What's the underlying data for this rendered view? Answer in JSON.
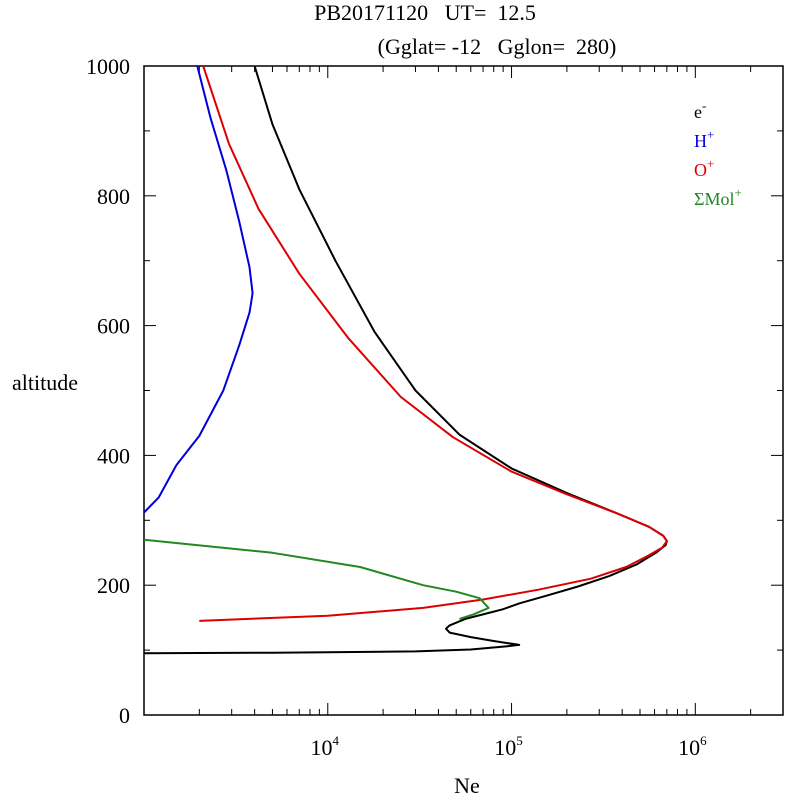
{
  "title_line1": "PB20171120   UT=  12.5",
  "title_line2": "(Gglat= -12   Gglon=  280)",
  "chart_data": {
    "type": "line",
    "title": "PB20171120   UT=  12.5   (Gglat= -12   Gglon=  280)",
    "xlabel": "Ne",
    "ylabel": "altitude",
    "xscale": "log",
    "xlim": [
      1000,
      3000000
    ],
    "ylim": [
      0,
      1000
    ],
    "x_ticks": [
      {
        "value": 10000,
        "base": "10",
        "exp": "4"
      },
      {
        "value": 100000,
        "base": "10",
        "exp": "5"
      },
      {
        "value": 1000000,
        "base": "10",
        "exp": "6"
      }
    ],
    "y_ticks": [
      {
        "value": 0,
        "label": "0"
      },
      {
        "value": 200,
        "label": "200"
      },
      {
        "value": 400,
        "label": "400"
      },
      {
        "value": 600,
        "label": "600"
      },
      {
        "value": 800,
        "label": "800"
      },
      {
        "value": 1000,
        "label": "1000"
      }
    ],
    "legend_position": "top-right",
    "series": [
      {
        "name": "e-",
        "base": "e",
        "sup": "-",
        "color": "#000000",
        "points": [
          [
            1000,
            95
          ],
          [
            5000,
            96
          ],
          [
            30000,
            98
          ],
          [
            60000,
            101
          ],
          [
            95000,
            106
          ],
          [
            110000,
            108
          ],
          [
            80000,
            114
          ],
          [
            60000,
            120
          ],
          [
            46000,
            127
          ],
          [
            44000,
            133
          ],
          [
            46000,
            138
          ],
          [
            56000,
            148
          ],
          [
            70000,
            155
          ],
          [
            90000,
            163
          ],
          [
            110000,
            172
          ],
          [
            160000,
            185
          ],
          [
            230000,
            198
          ],
          [
            340000,
            214
          ],
          [
            480000,
            232
          ],
          [
            610000,
            250
          ],
          [
            690000,
            262
          ],
          [
            700000,
            268
          ],
          [
            670000,
            276
          ],
          [
            560000,
            290
          ],
          [
            380000,
            310
          ],
          [
            200000,
            342
          ],
          [
            100000,
            380
          ],
          [
            52000,
            432
          ],
          [
            30000,
            500
          ],
          [
            18000,
            590
          ],
          [
            11000,
            700
          ],
          [
            7000,
            810
          ],
          [
            5000,
            910
          ],
          [
            4000,
            1000
          ]
        ]
      },
      {
        "name": "H+",
        "base": "H",
        "sup": "+",
        "color": "#0000dd",
        "points": [
          [
            1000,
            312
          ],
          [
            1200,
            335
          ],
          [
            1500,
            385
          ],
          [
            2000,
            430
          ],
          [
            2700,
            500
          ],
          [
            3300,
            570
          ],
          [
            3750,
            620
          ],
          [
            3900,
            650
          ],
          [
            3750,
            690
          ],
          [
            3300,
            760
          ],
          [
            2800,
            840
          ],
          [
            2300,
            920
          ],
          [
            1950,
            1000
          ]
        ]
      },
      {
        "name": "O+",
        "base": "O",
        "sup": "+",
        "color": "#dd0000",
        "points": [
          [
            2000,
            145
          ],
          [
            10000,
            153
          ],
          [
            33000,
            165
          ],
          [
            70000,
            178
          ],
          [
            140000,
            193
          ],
          [
            270000,
            210
          ],
          [
            420000,
            228
          ],
          [
            560000,
            246
          ],
          [
            660000,
            258
          ],
          [
            700000,
            268
          ],
          [
            670000,
            276
          ],
          [
            560000,
            290
          ],
          [
            380000,
            310
          ],
          [
            200000,
            340
          ],
          [
            100000,
            375
          ],
          [
            48000,
            428
          ],
          [
            25000,
            490
          ],
          [
            13000,
            580
          ],
          [
            7000,
            680
          ],
          [
            4200,
            780
          ],
          [
            2900,
            880
          ],
          [
            2100,
            1000
          ]
        ]
      },
      {
        "name": "ΣMol+",
        "base": "ΣMol",
        "sup": "+",
        "color": "#228822",
        "points": [
          [
            1000,
            270
          ],
          [
            5000,
            250
          ],
          [
            15000,
            228
          ],
          [
            33000,
            200
          ],
          [
            50000,
            190
          ],
          [
            67000,
            180
          ],
          [
            75000,
            165
          ],
          [
            62000,
            155
          ],
          [
            52000,
            148
          ]
        ]
      }
    ]
  }
}
